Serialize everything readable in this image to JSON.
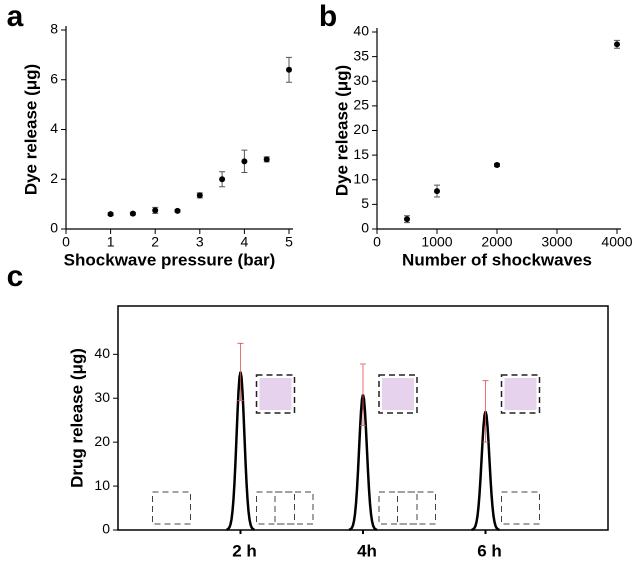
{
  "chart_data": [
    {
      "type": "scatter",
      "label": "a",
      "x_label": "Shockwave pressure (bar)",
      "y_label": "Dye release (μg)",
      "x": [
        1,
        1.5,
        2,
        2.5,
        3,
        3.5,
        4,
        4.5,
        5
      ],
      "values": [
        0.6,
        0.62,
        0.75,
        0.73,
        1.35,
        2.0,
        2.72,
        2.8,
        6.4
      ],
      "errors": [
        0.05,
        0.05,
        0.12,
        0.05,
        0.1,
        0.3,
        0.45,
        0.1,
        0.5
      ],
      "color": "#000000",
      "xlim": [
        0,
        5
      ],
      "ylim": [
        0,
        8
      ],
      "xticks": [
        0,
        1,
        2,
        3,
        4,
        5
      ],
      "yticks": [
        0,
        2,
        4,
        6,
        8
      ]
    },
    {
      "type": "scatter",
      "label": "b",
      "x_label": "Number of shockwaves",
      "y_label": "Dye release (μg)",
      "x": [
        500,
        1000,
        2000,
        4000
      ],
      "values": [
        2,
        7.7,
        13,
        37.5
      ],
      "errors": [
        0.7,
        1.2,
        0.3,
        0.8
      ],
      "color": "#000000",
      "xlim": [
        0,
        4000
      ],
      "ylim": [
        0,
        40
      ],
      "xticks": [
        0,
        1000,
        2000,
        3000,
        4000
      ],
      "yticks": [
        0,
        5,
        10,
        15,
        20,
        25,
        30,
        35,
        40
      ]
    },
    {
      "type": "peak",
      "label": "c",
      "y_label": "Drug release (μg)",
      "categories": [
        "2 h",
        "4h",
        "6 h"
      ],
      "values": [
        36,
        30.8,
        27
      ],
      "errors": [
        6.5,
        7,
        7
      ],
      "color": "#000000",
      "error_color": "#e05050",
      "ylim": [
        0,
        51
      ],
      "yticks": [
        0,
        10,
        20,
        30,
        40
      ]
    }
  ]
}
